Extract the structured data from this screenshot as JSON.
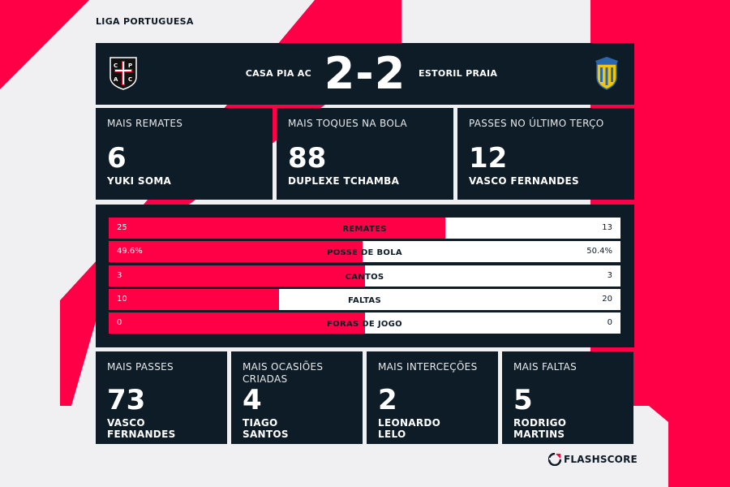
{
  "league": "LIGA PORTUGUESA",
  "match": {
    "home_team": "CASA PIA AC",
    "away_team": "ESTORIL PRAIA",
    "score": "2-2",
    "home_crest_text": "CPAC"
  },
  "top_stats": [
    {
      "label": "MAIS REMATES",
      "value": "6",
      "player": "YUKI SOMA"
    },
    {
      "label": "MAIS TOQUES NA BOLA",
      "value": "88",
      "player": "DUPLEXE TCHAMBA"
    },
    {
      "label": "PASSES NO ÚLTIMO TERÇO",
      "value": "12",
      "player": "VASCO FERNANDES"
    }
  ],
  "comparison": [
    {
      "label": "REMATES",
      "home": "25",
      "away": "13",
      "home_share": 0.658
    },
    {
      "label": "POSSE DE BOLA",
      "home": "49.6%",
      "away": "50.4%",
      "home_share": 0.496
    },
    {
      "label": "CANTOS",
      "home": "3",
      "away": "3",
      "home_share": 0.5
    },
    {
      "label": "FALTAS",
      "home": "10",
      "away": "20",
      "home_share": 0.333
    },
    {
      "label": "FORAS DE JOGO",
      "home": "0",
      "away": "0",
      "home_share": 0.5
    }
  ],
  "bottom_stats": [
    {
      "label": "MAIS PASSES",
      "value": "73",
      "player_line1": "VASCO",
      "player_line2": "FERNANDES"
    },
    {
      "label_line1": "MAIS OCASIÕES",
      "label_line2": "CRIADAS",
      "value": "4",
      "player_line1": "TIAGO",
      "player_line2": "SANTOS"
    },
    {
      "label": "MAIS INTERCEÇÕES",
      "value": "2",
      "player_line1": "LEONARDO",
      "player_line2": "LELO"
    },
    {
      "label": "MAIS FALTAS",
      "value": "5",
      "player_line1": "RODRIGO",
      "player_line2": "MARTINS"
    }
  ],
  "brand": "FLASHSCORE",
  "colors": {
    "accent": "#ff0046",
    "panel": "#0d1c27",
    "background": "#f0f0f2"
  }
}
